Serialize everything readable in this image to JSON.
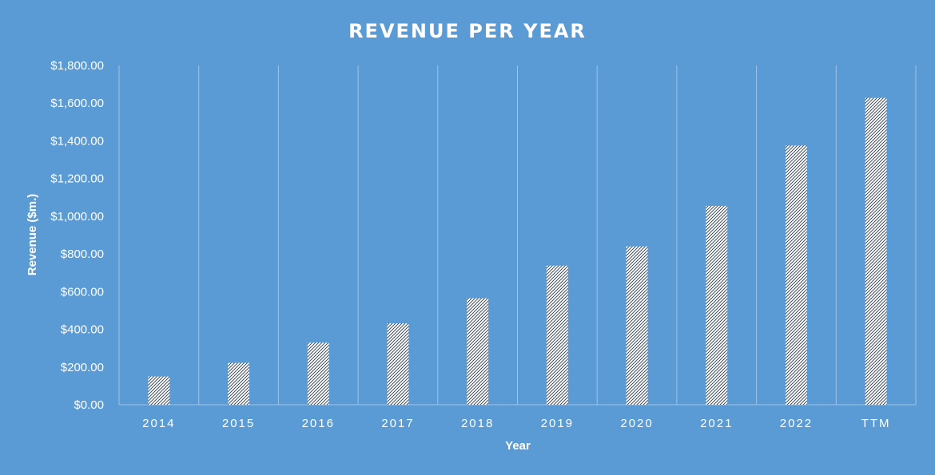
{
  "chart_data": {
    "type": "bar",
    "title": "REVENUE PER YEAR",
    "xlabel": "Year",
    "ylabel": "Revenue ($m.)",
    "categories": [
      "2014",
      "2015",
      "2016",
      "2017",
      "2018",
      "2019",
      "2020",
      "2021",
      "2022",
      "TTM"
    ],
    "values": [
      150,
      222,
      330,
      432,
      565,
      738,
      840,
      1055,
      1375,
      1628
    ],
    "ylim": [
      0,
      1800
    ],
    "yticks": [
      0,
      200,
      400,
      600,
      800,
      1000,
      1200,
      1400,
      1600,
      1800
    ],
    "ytick_labels": [
      "$0.00",
      "$200.00",
      "$400.00",
      "$600.00",
      "$800.00",
      "$1,000.00",
      "$1,200.00",
      "$1,400.00",
      "$1,600.00",
      "$1,800.00"
    ],
    "grid": "vertical",
    "legend": "none",
    "colors": {
      "background": "#5b9bd5",
      "bar_fill": "#ffffff",
      "bar_pattern": "#1f3a5c",
      "text": "#ffffff",
      "grid": "#9ec3e8"
    }
  }
}
